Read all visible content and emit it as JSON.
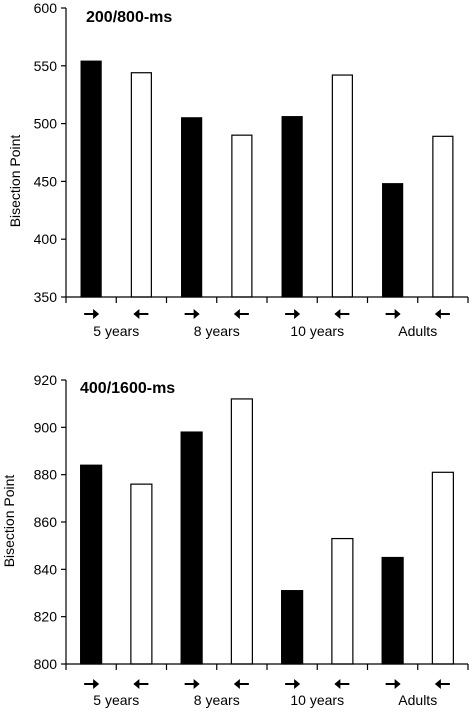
{
  "chart_data": [
    {
      "type": "bar",
      "title": "200/800-ms",
      "ylabel": "Bisection Point",
      "xlabel": "",
      "ylim": [
        350,
        600
      ],
      "yticks": [
        350,
        400,
        450,
        500,
        550,
        600
      ],
      "bar_labels": [
        "➔",
        "🡐",
        "➔",
        "🡐",
        "➔",
        "🡐",
        "➔",
        "🡐"
      ],
      "group_labels": [
        "5 years",
        "8 years",
        "10 years",
        "Adults"
      ],
      "values": [
        554,
        544,
        505,
        490,
        506,
        542,
        448,
        489
      ],
      "fills": [
        "#000000",
        "#ffffff",
        "#000000",
        "#ffffff",
        "#000000",
        "#ffffff",
        "#000000",
        "#ffffff"
      ]
    },
    {
      "type": "bar",
      "title": "400/1600-ms",
      "ylabel": "Bisection Point",
      "xlabel": "",
      "ylim": [
        800,
        920
      ],
      "yticks": [
        800,
        820,
        840,
        860,
        880,
        900,
        920
      ],
      "bar_labels": [
        "➔",
        "🡐",
        "➔",
        "🡐",
        "➔",
        "🡐",
        "➔",
        "🡐"
      ],
      "group_labels": [
        "5 years",
        "8 years",
        "10 years",
        "Adults"
      ],
      "values": [
        884,
        876,
        898,
        912,
        831,
        853,
        845,
        881
      ],
      "fills": [
        "#000000",
        "#ffffff",
        "#000000",
        "#ffffff",
        "#000000",
        "#ffffff",
        "#000000",
        "#ffffff"
      ]
    }
  ]
}
